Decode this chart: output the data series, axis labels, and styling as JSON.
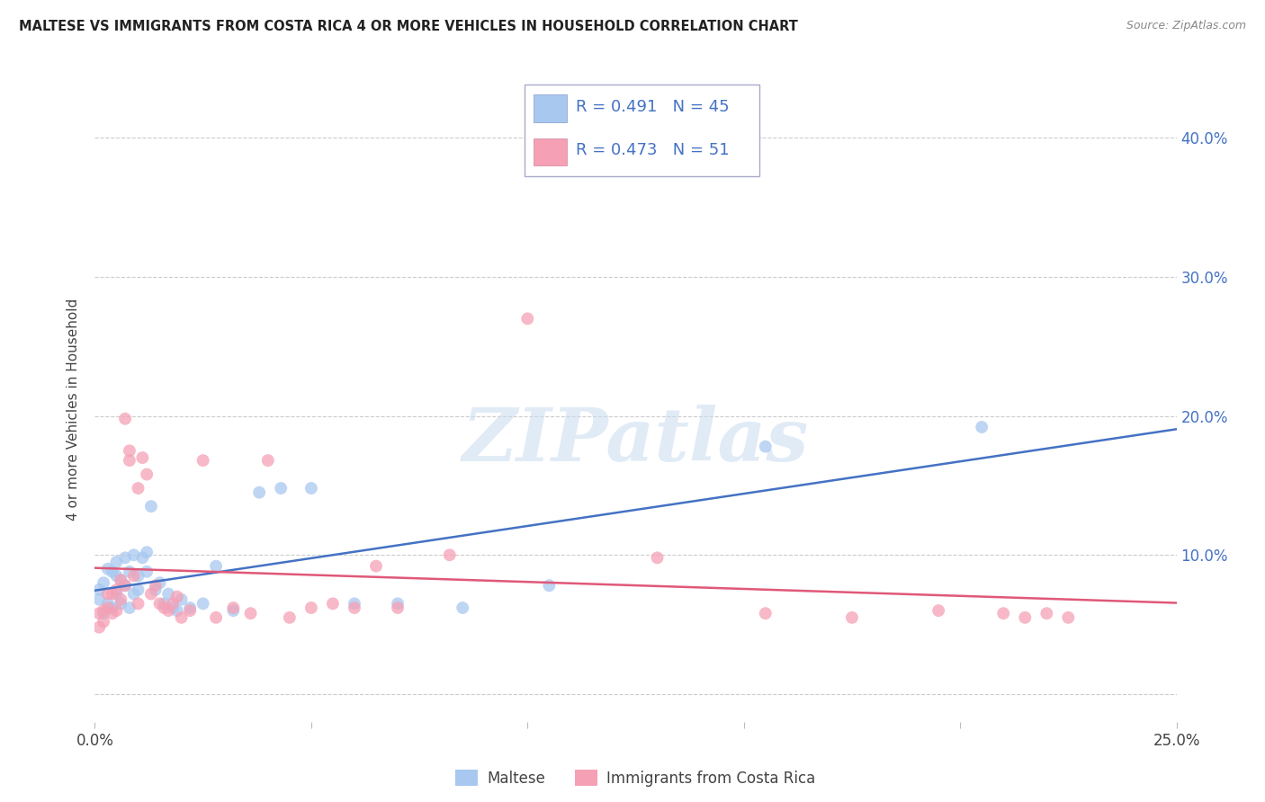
{
  "title": "MALTESE VS IMMIGRANTS FROM COSTA RICA 4 OR MORE VEHICLES IN HOUSEHOLD CORRELATION CHART",
  "source": "Source: ZipAtlas.com",
  "ylabel_text": "4 or more Vehicles in Household",
  "xlim": [
    0.0,
    0.25
  ],
  "ylim": [
    -0.02,
    0.43
  ],
  "blue_color": "#a8c8f0",
  "pink_color": "#f5a0b5",
  "blue_line_color": "#4472c4",
  "pink_line_color": "#e05878",
  "blue_R": 0.491,
  "blue_N": 45,
  "pink_R": 0.473,
  "pink_N": 51,
  "watermark": "ZIPatlas",
  "maltese_x": [
    0.001,
    0.001,
    0.002,
    0.002,
    0.003,
    0.003,
    0.004,
    0.004,
    0.005,
    0.005,
    0.005,
    0.006,
    0.006,
    0.007,
    0.007,
    0.008,
    0.008,
    0.009,
    0.009,
    0.01,
    0.01,
    0.011,
    0.012,
    0.012,
    0.013,
    0.014,
    0.015,
    0.016,
    0.017,
    0.018,
    0.019,
    0.02,
    0.022,
    0.025,
    0.028,
    0.032,
    0.038,
    0.043,
    0.05,
    0.06,
    0.07,
    0.085,
    0.105,
    0.155,
    0.205
  ],
  "maltese_y": [
    0.068,
    0.075,
    0.08,
    0.058,
    0.065,
    0.09,
    0.062,
    0.088,
    0.072,
    0.085,
    0.095,
    0.065,
    0.082,
    0.078,
    0.098,
    0.062,
    0.088,
    0.072,
    0.1,
    0.075,
    0.085,
    0.098,
    0.102,
    0.088,
    0.135,
    0.075,
    0.08,
    0.065,
    0.072,
    0.062,
    0.06,
    0.068,
    0.062,
    0.065,
    0.092,
    0.06,
    0.145,
    0.148,
    0.148,
    0.065,
    0.065,
    0.062,
    0.078,
    0.178,
    0.192
  ],
  "costarica_x": [
    0.001,
    0.001,
    0.002,
    0.002,
    0.003,
    0.003,
    0.004,
    0.004,
    0.005,
    0.005,
    0.006,
    0.006,
    0.007,
    0.007,
    0.008,
    0.008,
    0.009,
    0.01,
    0.01,
    0.011,
    0.012,
    0.013,
    0.014,
    0.015,
    0.016,
    0.017,
    0.018,
    0.019,
    0.02,
    0.022,
    0.025,
    0.028,
    0.032,
    0.036,
    0.04,
    0.045,
    0.05,
    0.055,
    0.06,
    0.065,
    0.07,
    0.082,
    0.1,
    0.13,
    0.155,
    0.175,
    0.195,
    0.21,
    0.215,
    0.22,
    0.225
  ],
  "costarica_y": [
    0.058,
    0.048,
    0.06,
    0.052,
    0.062,
    0.072,
    0.058,
    0.072,
    0.06,
    0.075,
    0.068,
    0.082,
    0.078,
    0.198,
    0.168,
    0.175,
    0.085,
    0.148,
    0.065,
    0.17,
    0.158,
    0.072,
    0.078,
    0.065,
    0.062,
    0.06,
    0.065,
    0.07,
    0.055,
    0.06,
    0.168,
    0.055,
    0.062,
    0.058,
    0.168,
    0.055,
    0.062,
    0.065,
    0.062,
    0.092,
    0.062,
    0.1,
    0.27,
    0.098,
    0.058,
    0.055,
    0.06,
    0.058,
    0.055,
    0.058,
    0.055
  ]
}
